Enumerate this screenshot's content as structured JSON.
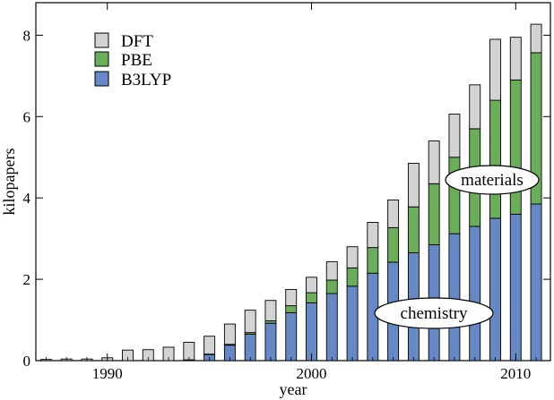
{
  "chart_data": {
    "type": "bar",
    "stacked": true,
    "xlabel": "year",
    "ylabel": "kilopapers",
    "xlim": [
      1986.5,
      2011.7
    ],
    "ylim": [
      0,
      8.8
    ],
    "xticks": [
      1990,
      2000,
      2010
    ],
    "yticks": [
      0,
      2,
      4,
      6,
      8
    ],
    "legend_position": "top-left",
    "legend": [
      {
        "label": "DFT",
        "color": "#d3d3d3"
      },
      {
        "label": "PBE",
        "color": "#6aae5a"
      },
      {
        "label": "B3LYP",
        "color": "#6688c4"
      }
    ],
    "x": [
      1987,
      1988,
      1989,
      1990,
      1991,
      1992,
      1993,
      1994,
      1995,
      1996,
      1997,
      1998,
      1999,
      2000,
      2001,
      2002,
      2003,
      2004,
      2005,
      2006,
      2007,
      2008,
      2009,
      2010,
      2011
    ],
    "series": [
      {
        "name": "B3LYP",
        "color": "#6688c4",
        "values": [
          0,
          0,
          0,
          0,
          0,
          0,
          0,
          0.02,
          0.15,
          0.38,
          0.65,
          0.92,
          1.18,
          1.42,
          1.65,
          1.83,
          2.15,
          2.42,
          2.65,
          2.85,
          3.12,
          3.3,
          3.5,
          3.6,
          3.85
        ]
      },
      {
        "name": "PBE",
        "color": "#6aae5a",
        "values": [
          0,
          0,
          0,
          0,
          0,
          0,
          0,
          0,
          0.01,
          0.02,
          0.04,
          0.06,
          0.17,
          0.25,
          0.33,
          0.45,
          0.63,
          0.85,
          1.13,
          1.5,
          1.88,
          2.4,
          2.9,
          3.3,
          3.72
        ]
      },
      {
        "name": "DFT",
        "color": "#d3d3d3",
        "values": [
          0.03,
          0.04,
          0.04,
          0.07,
          0.26,
          0.27,
          0.33,
          0.43,
          0.44,
          0.5,
          0.55,
          0.5,
          0.4,
          0.38,
          0.45,
          0.52,
          0.62,
          0.68,
          1.07,
          1.05,
          1.06,
          1.08,
          1.5,
          1.05,
          0.7
        ]
      }
    ],
    "annotations": [
      "materials",
      "chemistry"
    ]
  }
}
